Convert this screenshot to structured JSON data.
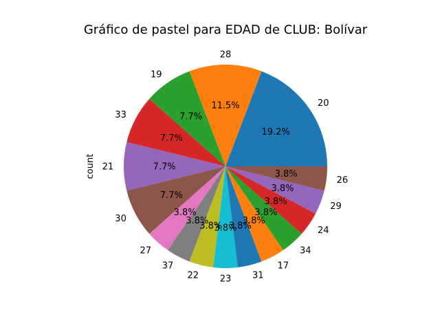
{
  "chart_data": {
    "type": "pie",
    "title": "Gráfico de pastel para EDAD de CLUB: Bolívar",
    "ylabel": "count",
    "start_angle_deg": 0,
    "direction": "counterclockwise",
    "slices": [
      {
        "label": "20",
        "value": 5,
        "pct": "19.2%",
        "color": "#1f77b4"
      },
      {
        "label": "28",
        "value": 3,
        "pct": "11.5%",
        "color": "#ff7f0e"
      },
      {
        "label": "19",
        "value": 2,
        "pct": "7.7%",
        "color": "#2ca02c"
      },
      {
        "label": "33",
        "value": 2,
        "pct": "7.7%",
        "color": "#d62728"
      },
      {
        "label": "21",
        "value": 2,
        "pct": "7.7%",
        "color": "#9467bd"
      },
      {
        "label": "30",
        "value": 2,
        "pct": "7.7%",
        "color": "#8c564b"
      },
      {
        "label": "27",
        "value": 1,
        "pct": "3.8%",
        "color": "#e377c2"
      },
      {
        "label": "37",
        "value": 1,
        "pct": "3.8%",
        "color": "#7f7f7f"
      },
      {
        "label": "22",
        "value": 1,
        "pct": "3.8%",
        "color": "#bcbd22"
      },
      {
        "label": "23",
        "value": 1,
        "pct": "3.8%",
        "color": "#17becf"
      },
      {
        "label": "31",
        "value": 1,
        "pct": "3.8%",
        "color": "#1f77b4"
      },
      {
        "label": "17",
        "value": 1,
        "pct": "3.8%",
        "color": "#ff7f0e"
      },
      {
        "label": "34",
        "value": 1,
        "pct": "3.8%",
        "color": "#2ca02c"
      },
      {
        "label": "24",
        "value": 1,
        "pct": "3.8%",
        "color": "#d62728"
      },
      {
        "label": "29",
        "value": 1,
        "pct": "3.8%",
        "color": "#9467bd"
      },
      {
        "label": "26",
        "value": 1,
        "pct": "3.8%",
        "color": "#8c564b"
      }
    ]
  }
}
